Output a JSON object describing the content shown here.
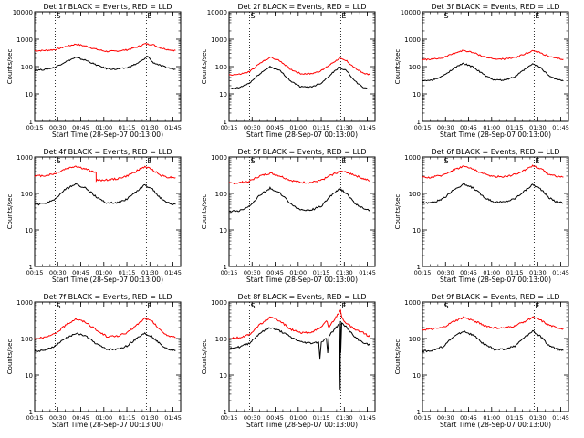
{
  "chart_data": [
    {
      "type": "line",
      "title": "Det 1f BLACK = Events, RED = LLD",
      "ylabel": "Counts/sec",
      "xlabel": "Start Time (28-Sep-07 00:13:00)",
      "ylim": [
        1,
        10000
      ],
      "yscale": "log",
      "yticks": [
        "1",
        "10",
        "100",
        "1000",
        "10000"
      ],
      "xlim": [
        900,
        6600
      ],
      "xticks": [
        "00:15",
        "00:30",
        "00:45",
        "01:00",
        "01:15",
        "01:30",
        "01:45"
      ],
      "markers": [
        "S",
        "E"
      ],
      "marker_x": [
        1700,
        5260
      ],
      "series": [
        {
          "color": "#ff0000",
          "x": [
            900,
            1300,
            1700,
            2100,
            2500,
            2900,
            3300,
            3700,
            4100,
            4500,
            4900,
            5200,
            5500,
            5800,
            6100,
            6400
          ],
          "values": [
            380,
            390,
            420,
            540,
            660,
            560,
            430,
            360,
            370,
            410,
            520,
            680,
            640,
            490,
            420,
            390
          ]
        },
        {
          "color": "#000000",
          "x": [
            900,
            1300,
            1700,
            2100,
            2500,
            2900,
            3300,
            3700,
            4100,
            4500,
            4900,
            5200,
            5300,
            5500,
            5800,
            6100,
            6400
          ],
          "values": [
            75,
            78,
            95,
            150,
            215,
            170,
            115,
            85,
            80,
            90,
            130,
            190,
            250,
            145,
            110,
            90,
            80
          ]
        }
      ]
    },
    {
      "type": "line",
      "title": "Det 2f BLACK = Events, RED = LLD",
      "ylabel": "Counts/sec",
      "xlabel": "Start Time (28-Sep-07 00:13:00)",
      "ylim": [
        1,
        10000
      ],
      "yscale": "log",
      "yticks": [
        "1",
        "10",
        "100",
        "1000",
        "10000"
      ],
      "xlim": [
        900,
        6600
      ],
      "xticks": [
        "00:15",
        "00:30",
        "00:45",
        "01:00",
        "01:15",
        "01:30",
        "01:45"
      ],
      "markers": [
        "S",
        "E"
      ],
      "marker_x": [
        1700,
        5260
      ],
      "series": [
        {
          "color": "#ff0000",
          "x": [
            900,
            1300,
            1700,
            2100,
            2500,
            2900,
            3300,
            3700,
            4100,
            4500,
            4900,
            5200,
            5500,
            5800,
            6100,
            6400
          ],
          "values": [
            50,
            52,
            65,
            130,
            220,
            160,
            80,
            55,
            55,
            70,
            130,
            200,
            160,
            90,
            60,
            50
          ]
        },
        {
          "color": "#000000",
          "x": [
            900,
            1300,
            1700,
            2100,
            2500,
            2900,
            3300,
            3700,
            4100,
            4500,
            4900,
            5200,
            5500,
            5800,
            6100,
            6400
          ],
          "values": [
            15,
            17,
            25,
            55,
            100,
            70,
            30,
            18,
            18,
            25,
            55,
            95,
            70,
            30,
            18,
            15
          ]
        }
      ]
    },
    {
      "type": "line",
      "title": "Det 3f BLACK = Events, RED = LLD",
      "ylabel": "Counts/sec",
      "xlabel": "Start Time (28-Sep-07 00:13:00)",
      "ylim": [
        1,
        10000
      ],
      "yscale": "log",
      "yticks": [
        "1",
        "10",
        "100",
        "1000",
        "10000"
      ],
      "xlim": [
        900,
        6600
      ],
      "xticks": [
        "00:15",
        "00:30",
        "00:45",
        "01:00",
        "01:15",
        "01:30",
        "01:45"
      ],
      "markers": [
        "S",
        "E"
      ],
      "marker_x": [
        1700,
        5260
      ],
      "series": [
        {
          "color": "#ff0000",
          "x": [
            900,
            1300,
            1700,
            2100,
            2500,
            2900,
            3300,
            3700,
            4100,
            4500,
            4900,
            5200,
            5500,
            5800,
            6100,
            6400
          ],
          "values": [
            180,
            185,
            210,
            300,
            390,
            320,
            230,
            190,
            190,
            210,
            290,
            380,
            320,
            240,
            200,
            185
          ]
        },
        {
          "color": "#000000",
          "x": [
            900,
            1300,
            1700,
            2100,
            2500,
            2900,
            3300,
            3700,
            4100,
            4500,
            4900,
            5200,
            5500,
            5800,
            6100,
            6400
          ],
          "values": [
            30,
            32,
            45,
            85,
            130,
            95,
            50,
            32,
            32,
            42,
            80,
            125,
            95,
            50,
            35,
            30
          ]
        }
      ]
    },
    {
      "type": "line",
      "title": "Det 4f BLACK = Events, RED = LLD",
      "ylabel": "Counts/sec",
      "xlabel": "Start Time (28-Sep-07 00:13:00)",
      "ylim": [
        1,
        1000
      ],
      "yscale": "log",
      "yticks": [
        "1",
        "10",
        "100",
        "1000"
      ],
      "xlim": [
        900,
        6600
      ],
      "xticks": [
        "00:15",
        "00:30",
        "00:45",
        "01:00",
        "01:15",
        "01:30",
        "01:45"
      ],
      "markers": [
        "S",
        "E"
      ],
      "marker_x": [
        1700,
        5260
      ],
      "series": [
        {
          "color": "#ff0000",
          "x": [
            900,
            1300,
            1700,
            2100,
            2500,
            2900,
            3299,
            3300,
            3700,
            4100,
            4500,
            4900,
            5200,
            5500,
            5800,
            6100,
            6400
          ],
          "values": [
            300,
            310,
            350,
            470,
            560,
            460,
            370,
            230,
            235,
            250,
            300,
            420,
            540,
            450,
            320,
            280,
            270
          ]
        },
        {
          "color": "#000000",
          "x": [
            900,
            1300,
            1700,
            2100,
            2500,
            2900,
            3300,
            3700,
            4100,
            4500,
            4900,
            5200,
            5500,
            5800,
            6100,
            6400
          ],
          "values": [
            50,
            52,
            70,
            130,
            180,
            140,
            80,
            55,
            55,
            70,
            120,
            170,
            130,
            75,
            55,
            50
          ]
        }
      ]
    },
    {
      "type": "line",
      "title": "Det 5f BLACK = Events, RED = LLD",
      "ylabel": "Counts/sec",
      "xlabel": "Start Time (28-Sep-07 00:13:00)",
      "ylim": [
        1,
        1000
      ],
      "yscale": "log",
      "yticks": [
        "1",
        "10",
        "100",
        "1000"
      ],
      "xlim": [
        900,
        6600
      ],
      "xticks": [
        "00:15",
        "00:30",
        "00:45",
        "01:00",
        "01:15",
        "01:30",
        "01:45"
      ],
      "markers": [
        "S",
        "E"
      ],
      "marker_x": [
        1700,
        5260
      ],
      "series": [
        {
          "color": "#ff0000",
          "x": [
            900,
            1300,
            1700,
            2100,
            2500,
            2900,
            3300,
            3700,
            4100,
            4500,
            4900,
            5200,
            5500,
            5800,
            6100,
            6400
          ],
          "values": [
            190,
            195,
            220,
            300,
            360,
            300,
            230,
            200,
            200,
            230,
            320,
            400,
            380,
            320,
            260,
            220
          ]
        },
        {
          "color": "#000000",
          "x": [
            900,
            1300,
            1700,
            2100,
            2500,
            2900,
            3300,
            3700,
            4100,
            4500,
            4900,
            5200,
            5500,
            5800,
            6100,
            6400
          ],
          "values": [
            32,
            33,
            45,
            90,
            140,
            100,
            52,
            35,
            35,
            45,
            90,
            135,
            100,
            55,
            40,
            35
          ]
        }
      ]
    },
    {
      "type": "line",
      "title": "Det 6f BLACK = Events, RED = LLD",
      "ylabel": "Counts/sec",
      "xlabel": "Start Time (28-Sep-07 00:13:00)",
      "ylim": [
        1,
        1000
      ],
      "yscale": "log",
      "yticks": [
        "1",
        "10",
        "100",
        "1000"
      ],
      "xlim": [
        900,
        6600
      ],
      "xticks": [
        "00:15",
        "00:30",
        "00:45",
        "01:00",
        "01:15",
        "01:30",
        "01:45"
      ],
      "markers": [
        "S",
        "E"
      ],
      "marker_x": [
        1700,
        5260
      ],
      "series": [
        {
          "color": "#ff0000",
          "x": [
            900,
            1300,
            1700,
            2100,
            2500,
            2900,
            3300,
            3700,
            4100,
            4500,
            4900,
            5200,
            5500,
            5800,
            6100,
            6400
          ],
          "values": [
            270,
            280,
            320,
            440,
            560,
            460,
            340,
            290,
            290,
            330,
            440,
            580,
            480,
            350,
            300,
            280
          ]
        },
        {
          "color": "#000000",
          "x": [
            900,
            1300,
            1700,
            2100,
            2500,
            2900,
            3300,
            3700,
            4100,
            4500,
            4900,
            5200,
            5500,
            5800,
            6100,
            6400
          ],
          "values": [
            55,
            57,
            70,
            125,
            180,
            140,
            80,
            58,
            58,
            72,
            120,
            175,
            135,
            80,
            60,
            55
          ]
        }
      ]
    },
    {
      "type": "line",
      "title": "Det 7f BLACK = Events, RED = LLD",
      "ylabel": "Counts/sec",
      "xlabel": "Start Time (28-Sep-07 00:13:00)",
      "ylim": [
        1,
        1000
      ],
      "yscale": "log",
      "yticks": [
        "1",
        "10",
        "100",
        "1000"
      ],
      "xlim": [
        900,
        6600
      ],
      "xticks": [
        "00:15",
        "00:30",
        "00:45",
        "01:00",
        "01:15",
        "01:30",
        "01:45"
      ],
      "markers": [
        "S",
        "E"
      ],
      "marker_x": [
        1700,
        5260
      ],
      "series": [
        {
          "color": "#ff0000",
          "x": [
            900,
            1300,
            1700,
            2100,
            2500,
            2900,
            3300,
            3700,
            4100,
            4500,
            4900,
            5200,
            5500,
            5800,
            6100,
            6400
          ],
          "values": [
            100,
            105,
            135,
            230,
            350,
            280,
            170,
            115,
            115,
            140,
            240,
            360,
            290,
            170,
            120,
            105
          ]
        },
        {
          "color": "#000000",
          "x": [
            900,
            1300,
            1700,
            2100,
            2500,
            2900,
            3300,
            3700,
            4100,
            4500,
            4900,
            5200,
            5500,
            5800,
            6100,
            6400
          ],
          "values": [
            45,
            47,
            62,
            100,
            140,
            115,
            72,
            50,
            50,
            62,
            105,
            140,
            110,
            70,
            52,
            47
          ]
        }
      ]
    },
    {
      "type": "line",
      "title": "Det 8f BLACK = Events, RED = LLD",
      "ylabel": "Counts/sec",
      "xlabel": "Start Time (28-Sep-07 00:13:00)",
      "ylim": [
        1,
        1000
      ],
      "yscale": "log",
      "yticks": [
        "1",
        "10",
        "100",
        "1000"
      ],
      "xlim": [
        900,
        6600
      ],
      "xticks": [
        "00:15",
        "00:30",
        "00:45",
        "01:00",
        "01:15",
        "01:30",
        "01:45"
      ],
      "markers": [
        "S",
        "E"
      ],
      "marker_x": [
        1700,
        5260
      ],
      "series": [
        {
          "color": "#ff0000",
          "x": [
            900,
            1300,
            1700,
            2100,
            2500,
            2900,
            3300,
            3700,
            4100,
            4500,
            4700,
            4800,
            4900,
            5000,
            5100,
            5200,
            5250,
            5300,
            5400,
            5500,
            5800,
            6100,
            6400
          ],
          "values": [
            100,
            105,
            130,
            240,
            380,
            300,
            180,
            140,
            150,
            200,
            320,
            200,
            260,
            300,
            420,
            520,
            600,
            380,
            300,
            260,
            180,
            150,
            110
          ]
        },
        {
          "color": "#000000",
          "x": [
            900,
            1300,
            1700,
            2100,
            2500,
            2900,
            3300,
            3700,
            4100,
            4400,
            4450,
            4500,
            4700,
            4750,
            4800,
            5000,
            5200,
            5240,
            5250,
            5260,
            5300,
            5500,
            5800,
            6100,
            6400
          ],
          "values": [
            55,
            58,
            75,
            140,
            200,
            160,
            110,
            80,
            75,
            80,
            28,
            80,
            100,
            40,
            120,
            170,
            250,
            4,
            300,
            40,
            280,
            200,
            110,
            80,
            65
          ]
        }
      ]
    },
    {
      "type": "line",
      "title": "Det 9f BLACK = Events, RED = LLD",
      "ylabel": "Counts/sec",
      "xlabel": "Start Time (28-Sep-07 00:13:00)",
      "ylim": [
        1,
        1000
      ],
      "yscale": "log",
      "yticks": [
        "1",
        "10",
        "100",
        "1000"
      ],
      "xlim": [
        900,
        6600
      ],
      "xticks": [
        "00:15",
        "00:30",
        "00:45",
        "01:00",
        "01:15",
        "01:30",
        "01:45"
      ],
      "markers": [
        "S",
        "E"
      ],
      "marker_x": [
        1700,
        5260
      ],
      "series": [
        {
          "color": "#ff0000",
          "x": [
            900,
            1300,
            1700,
            2100,
            2500,
            2900,
            3300,
            3700,
            4100,
            4500,
            4900,
            5200,
            5500,
            5800,
            6100,
            6400
          ],
          "values": [
            175,
            180,
            200,
            290,
            380,
            310,
            230,
            195,
            195,
            220,
            300,
            380,
            320,
            240,
            200,
            185
          ]
        },
        {
          "color": "#000000",
          "x": [
            900,
            1300,
            1700,
            2100,
            2500,
            2900,
            3300,
            3700,
            4100,
            4500,
            4900,
            5200,
            5500,
            5800,
            6100,
            6400
          ],
          "values": [
            45,
            47,
            60,
            110,
            160,
            120,
            70,
            50,
            50,
            62,
            110,
            160,
            115,
            68,
            52,
            47
          ]
        }
      ]
    }
  ]
}
